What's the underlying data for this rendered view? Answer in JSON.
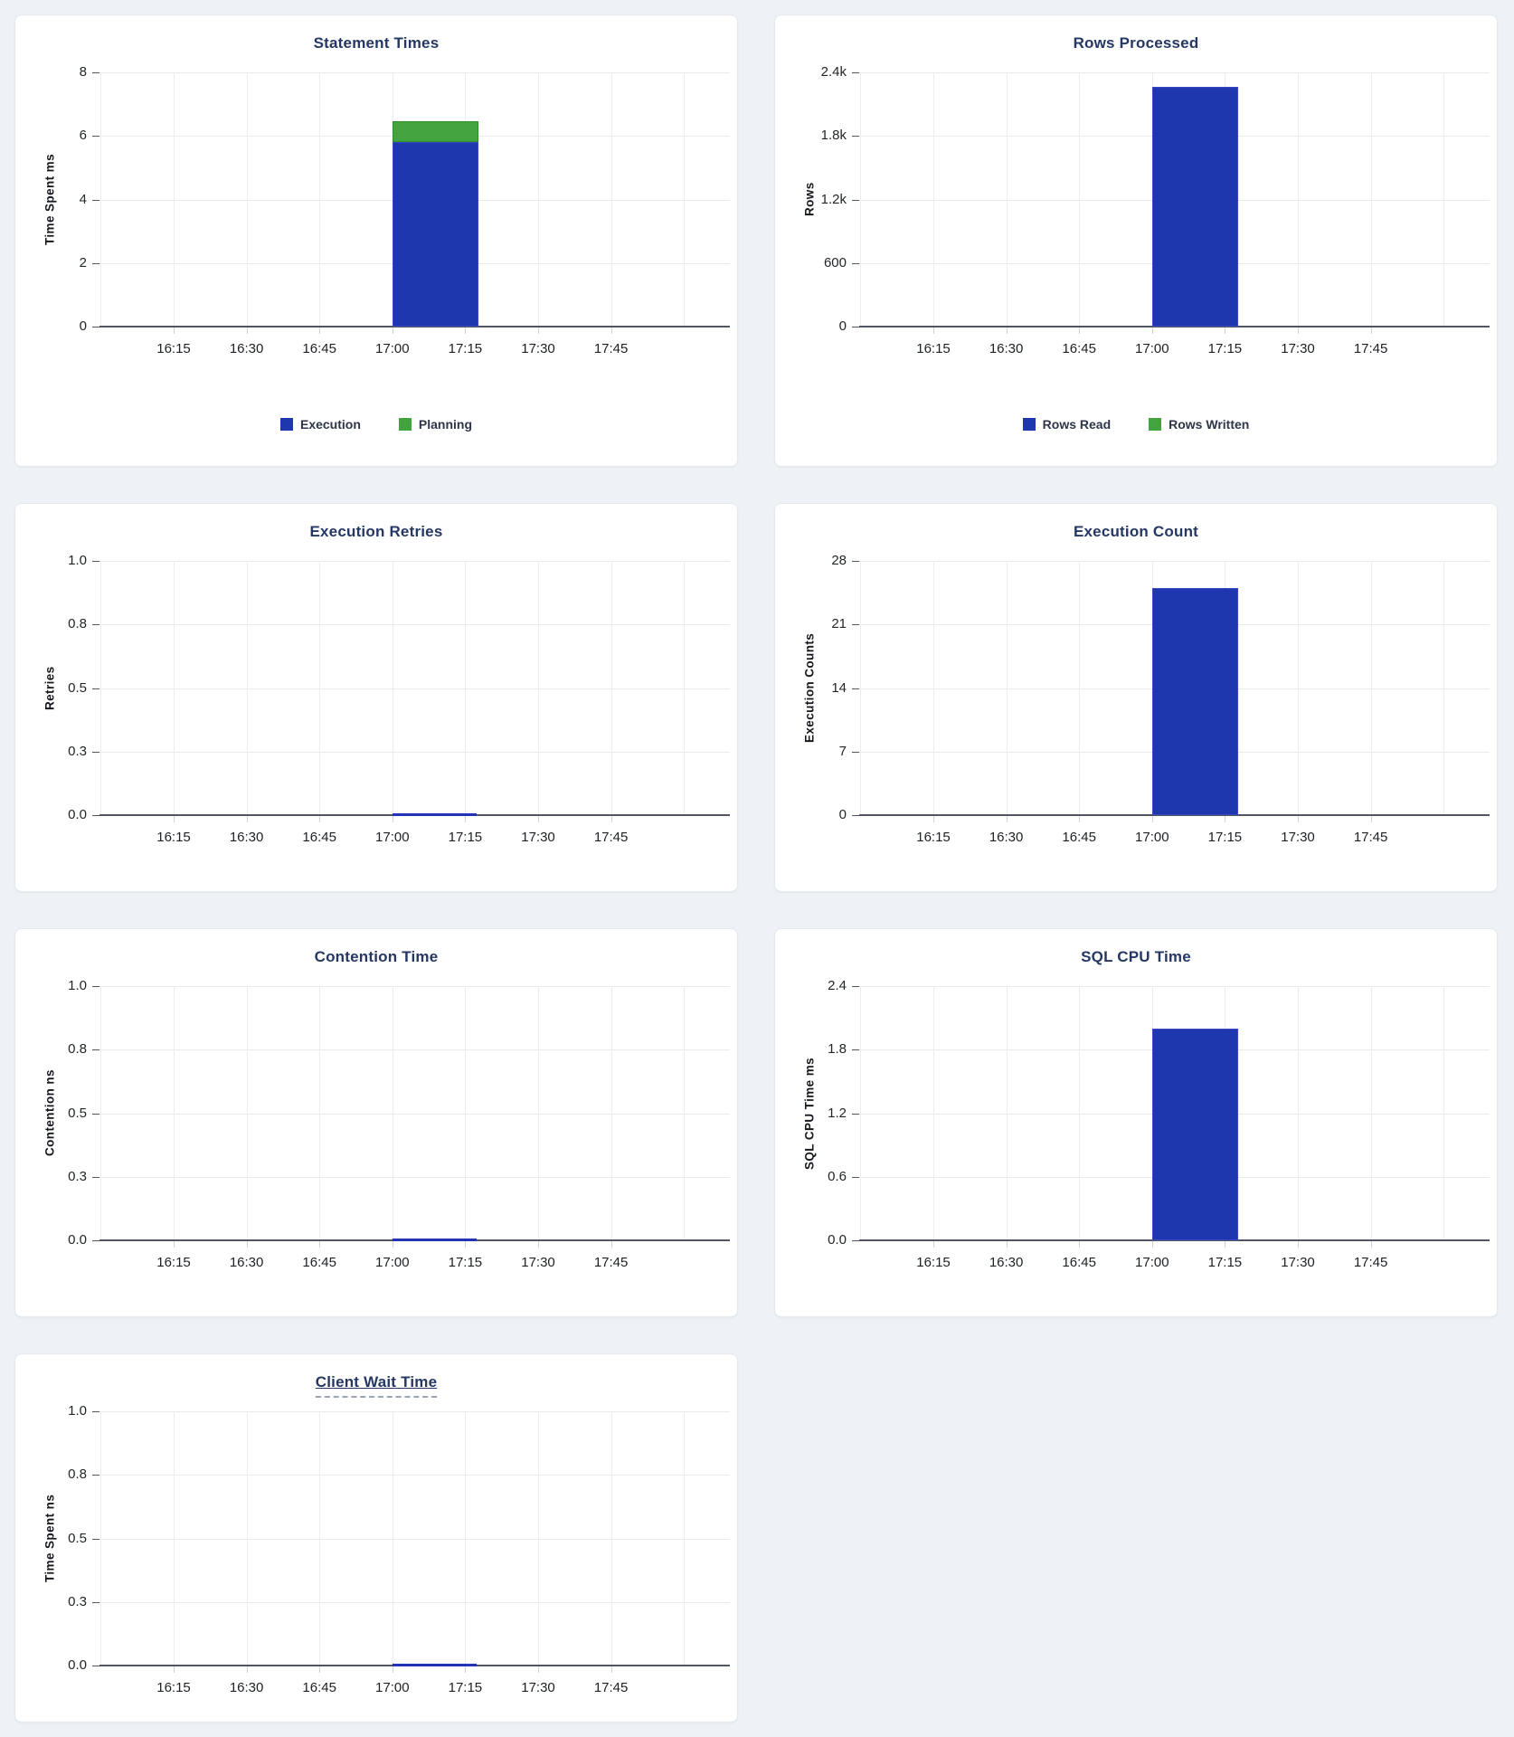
{
  "colors": {
    "page_background": "#eef2f6",
    "card_background": "#ffffff",
    "title": "#253763",
    "bar_blue": "#1e36ae",
    "bar_green": "#43a33e",
    "line_blue": "#2233b8",
    "gridline": "#e8eaee",
    "axis_line": "#515661"
  },
  "chart_data": [
    {
      "type": "bar",
      "title": "Statement Times",
      "ylabel": "Time Spent ms",
      "xlabel": "",
      "ylim": [
        0,
        8
      ],
      "y_tick_labels": [
        "8",
        "6",
        "4",
        "2",
        "0"
      ],
      "x_ticks": [
        "16:15",
        "16:30",
        "16:45",
        "17:00",
        "17:15",
        "17:30",
        "17:45"
      ],
      "grid": true,
      "stacked": true,
      "legend_position": "bottom",
      "legend": [
        {
          "label": "Execution",
          "color": "#1e36ae"
        },
        {
          "label": "Planning",
          "color": "#43a33e"
        }
      ],
      "series": [
        {
          "name": "Execution",
          "color": "#1e36ae",
          "border": "#3a49c2",
          "points": [
            {
              "x": "17:00",
              "y": 5.8
            }
          ]
        },
        {
          "name": "Planning",
          "color": "#43a33e",
          "border": "#2e8f2c",
          "points": [
            {
              "x": "17:00",
              "y": 0.65
            }
          ]
        }
      ]
    },
    {
      "type": "bar",
      "title": "Rows Processed",
      "ylabel": "Rows",
      "xlabel": "",
      "ylim": [
        0,
        2400
      ],
      "y_tick_labels": [
        "2.4k",
        "1.8k",
        "1.2k",
        "600",
        "0"
      ],
      "x_ticks": [
        "16:15",
        "16:30",
        "16:45",
        "17:00",
        "17:15",
        "17:30",
        "17:45"
      ],
      "grid": true,
      "stacked": true,
      "legend_position": "bottom",
      "legend": [
        {
          "label": "Rows Read",
          "color": "#1e36ae"
        },
        {
          "label": "Rows Written",
          "color": "#43a33e"
        }
      ],
      "series": [
        {
          "name": "Rows Read",
          "color": "#1e36ae",
          "border": "#3a49c2",
          "points": [
            {
              "x": "17:00",
              "y": 2260
            }
          ]
        },
        {
          "name": "Rows Written",
          "color": "#43a33e",
          "border": "#2e8f2c",
          "points": [
            {
              "x": "17:00",
              "y": 0
            }
          ]
        }
      ]
    },
    {
      "type": "line",
      "title": "Execution Retries",
      "ylabel": "Retries",
      "xlabel": "",
      "ylim": [
        0,
        1
      ],
      "y_tick_labels": [
        "1.0",
        "0.8",
        "0.5",
        "0.3",
        "0.0"
      ],
      "x_ticks": [
        "16:15",
        "16:30",
        "16:45",
        "17:00",
        "17:15",
        "17:30",
        "17:45"
      ],
      "grid": true,
      "series": [
        {
          "name": "Retries",
          "color": "#2233b8",
          "points": [
            {
              "x": "17:00",
              "y": 0
            },
            {
              "x": "17:17",
              "y": 0
            }
          ]
        }
      ]
    },
    {
      "type": "bar",
      "title": "Execution Count",
      "ylabel": "Execution Counts",
      "xlabel": "",
      "ylim": [
        0,
        28
      ],
      "y_tick_labels": [
        "28",
        "21",
        "14",
        "7",
        "0"
      ],
      "x_ticks": [
        "16:15",
        "16:30",
        "16:45",
        "17:00",
        "17:15",
        "17:30",
        "17:45"
      ],
      "grid": true,
      "series": [
        {
          "name": "Execution Count",
          "color": "#1e36ae",
          "border": "#3a49c2",
          "points": [
            {
              "x": "17:00",
              "y": 25
            }
          ]
        }
      ]
    },
    {
      "type": "line",
      "title": "Contention Time",
      "ylabel": "Contention ns",
      "xlabel": "",
      "ylim": [
        0,
        1
      ],
      "y_tick_labels": [
        "1.0",
        "0.8",
        "0.5",
        "0.3",
        "0.0"
      ],
      "x_ticks": [
        "16:15",
        "16:30",
        "16:45",
        "17:00",
        "17:15",
        "17:30",
        "17:45"
      ],
      "grid": true,
      "series": [
        {
          "name": "Contention",
          "color": "#2233b8",
          "points": [
            {
              "x": "17:00",
              "y": 0
            },
            {
              "x": "17:17",
              "y": 0
            }
          ]
        }
      ]
    },
    {
      "type": "bar",
      "title": "SQL CPU Time",
      "ylabel": "SQL CPU Time ms",
      "xlabel": "",
      "ylim": [
        0,
        2.4
      ],
      "y_tick_labels": [
        "2.4",
        "1.8",
        "1.2",
        "0.6",
        "0.0"
      ],
      "x_ticks": [
        "16:15",
        "16:30",
        "16:45",
        "17:00",
        "17:15",
        "17:30",
        "17:45"
      ],
      "grid": true,
      "series": [
        {
          "name": "SQL CPU Time",
          "color": "#1e36ae",
          "border": "#3a49c2",
          "points": [
            {
              "x": "17:00",
              "y": 2.0
            }
          ]
        }
      ]
    },
    {
      "type": "line",
      "title": "Client Wait Time",
      "title_underline": "dashed",
      "ylabel": "Time Spent ns",
      "xlabel": "",
      "ylim": [
        0,
        1
      ],
      "y_tick_labels": [
        "1.0",
        "0.8",
        "0.5",
        "0.3",
        "0.0"
      ],
      "x_ticks": [
        "16:15",
        "16:30",
        "16:45",
        "17:00",
        "17:15",
        "17:30",
        "17:45"
      ],
      "grid": true,
      "series": [
        {
          "name": "Client Wait",
          "color": "#2233b8",
          "points": [
            {
              "x": "17:00",
              "y": 0
            },
            {
              "x": "17:17",
              "y": 0
            }
          ]
        }
      ]
    }
  ]
}
